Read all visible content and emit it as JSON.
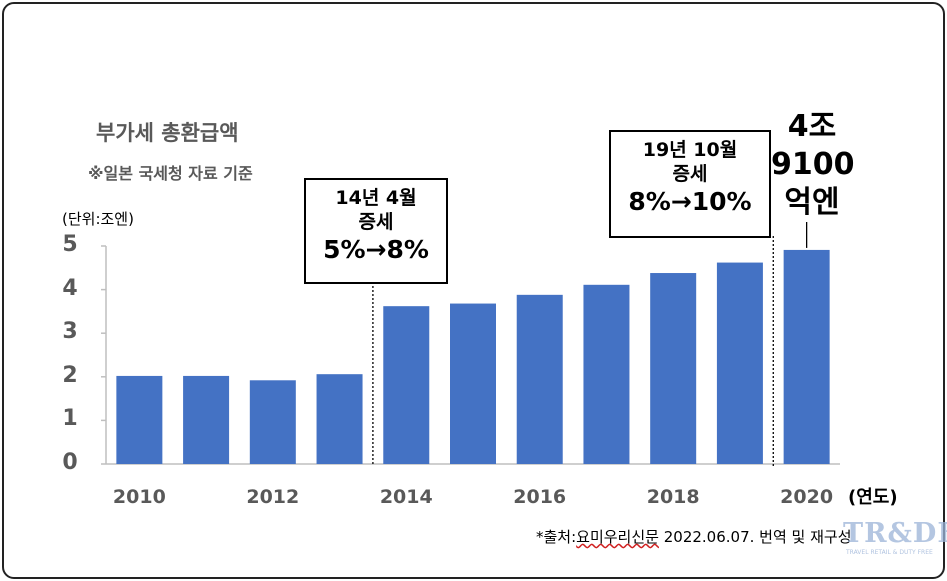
{
  "chart_data": {
    "type": "bar",
    "title": "부가세 총환급액",
    "subtitle": "※일본 국세청 자료 기준",
    "ylabel": "(단위:조엔)",
    "xlabel": "(연도)",
    "categories": [
      "2010",
      "2011",
      "2012",
      "2013",
      "2014",
      "2015",
      "2016",
      "2017",
      "2018",
      "2019",
      "2020"
    ],
    "x_tick_labels": [
      "2010",
      "2012",
      "2014",
      "2016",
      "2018",
      "2020"
    ],
    "y_tick_labels": [
      "0",
      "1",
      "2",
      "3",
      "4",
      "5"
    ],
    "values": [
      2.02,
      2.02,
      1.92,
      2.06,
      3.62,
      3.68,
      3.88,
      4.11,
      4.38,
      4.62,
      4.91
    ],
    "ylim": [
      0,
      5
    ],
    "bar_color": "#4472c4",
    "grid": false,
    "annotations": {
      "box1": {
        "line1": "14년 4월",
        "line2": "증세",
        "line3": "5%→8%"
      },
      "box2": {
        "line1": "19년 10월",
        "line2": "증세",
        "line3": "8%→10%"
      },
      "value_label": {
        "line1": "4조",
        "line2": "9100",
        "line3": "억엔"
      }
    }
  },
  "source": {
    "prefix": "*출처:",
    "underlined": "요미우리신문",
    "rest": " 2022.06.07. 번역 및 재구성"
  },
  "watermark": {
    "logo": "TR&DF",
    "tagline": "TRAVEL RETAIL & DUTY FREE"
  }
}
